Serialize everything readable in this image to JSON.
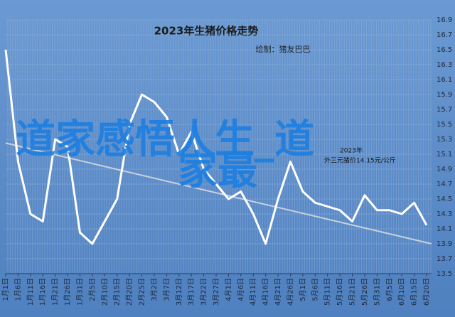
{
  "chart_data": {
    "type": "line",
    "title": "2023年生猪价格走势",
    "subtitle": "绘制：猪友巴巴",
    "watermark": [
      "道家感悟人生_道",
      "家最"
    ],
    "annotation": [
      "2023年",
      "外三元猪价14.15元/公斤"
    ],
    "categories": [
      "1月1日",
      "1月6日",
      "1月11日",
      "1月16日",
      "1月21日",
      "1月26日",
      "1月31日",
      "2月5日",
      "2月10日",
      "2月15日",
      "2月20日",
      "2月25日",
      "3月2日",
      "3月7日",
      "3月12日",
      "3月17日",
      "3月22日",
      "3月27日",
      "4月1日",
      "4月6日",
      "4月11日",
      "4月16日",
      "4月21日",
      "4月26日",
      "5月1日",
      "5月6日",
      "5月11日",
      "5月16日",
      "5月21日",
      "5月26日",
      "5月31日",
      "6月5日",
      "6月10日",
      "6月15日",
      "6月20日"
    ],
    "series": [
      {
        "color": "#ffffff",
        "values": [
          16.5,
          15.0,
          14.3,
          14.2,
          15.3,
          15.2,
          14.05,
          13.9,
          14.2,
          14.5,
          15.5,
          15.9,
          15.8,
          15.6,
          15.1,
          15.4,
          14.9,
          14.7,
          14.5,
          14.6,
          14.3,
          13.9,
          14.5,
          15.0,
          14.6,
          14.45,
          14.4,
          14.35,
          14.2,
          14.55,
          14.35,
          14.35,
          14.3,
          14.45,
          14.15
        ]
      }
    ],
    "trend": {
      "color": "#c8d0dc",
      "values": [
        15.25,
        13.9
      ]
    },
    "ylim": [
      13.5,
      16.9
    ],
    "yticks": [
      13.5,
      13.7,
      13.9,
      14.1,
      14.3,
      14.5,
      14.7,
      14.9,
      15.1,
      15.3,
      15.5,
      15.7,
      15.9,
      16.1,
      16.3,
      16.5,
      16.7,
      16.9
    ],
    "grid": true
  }
}
